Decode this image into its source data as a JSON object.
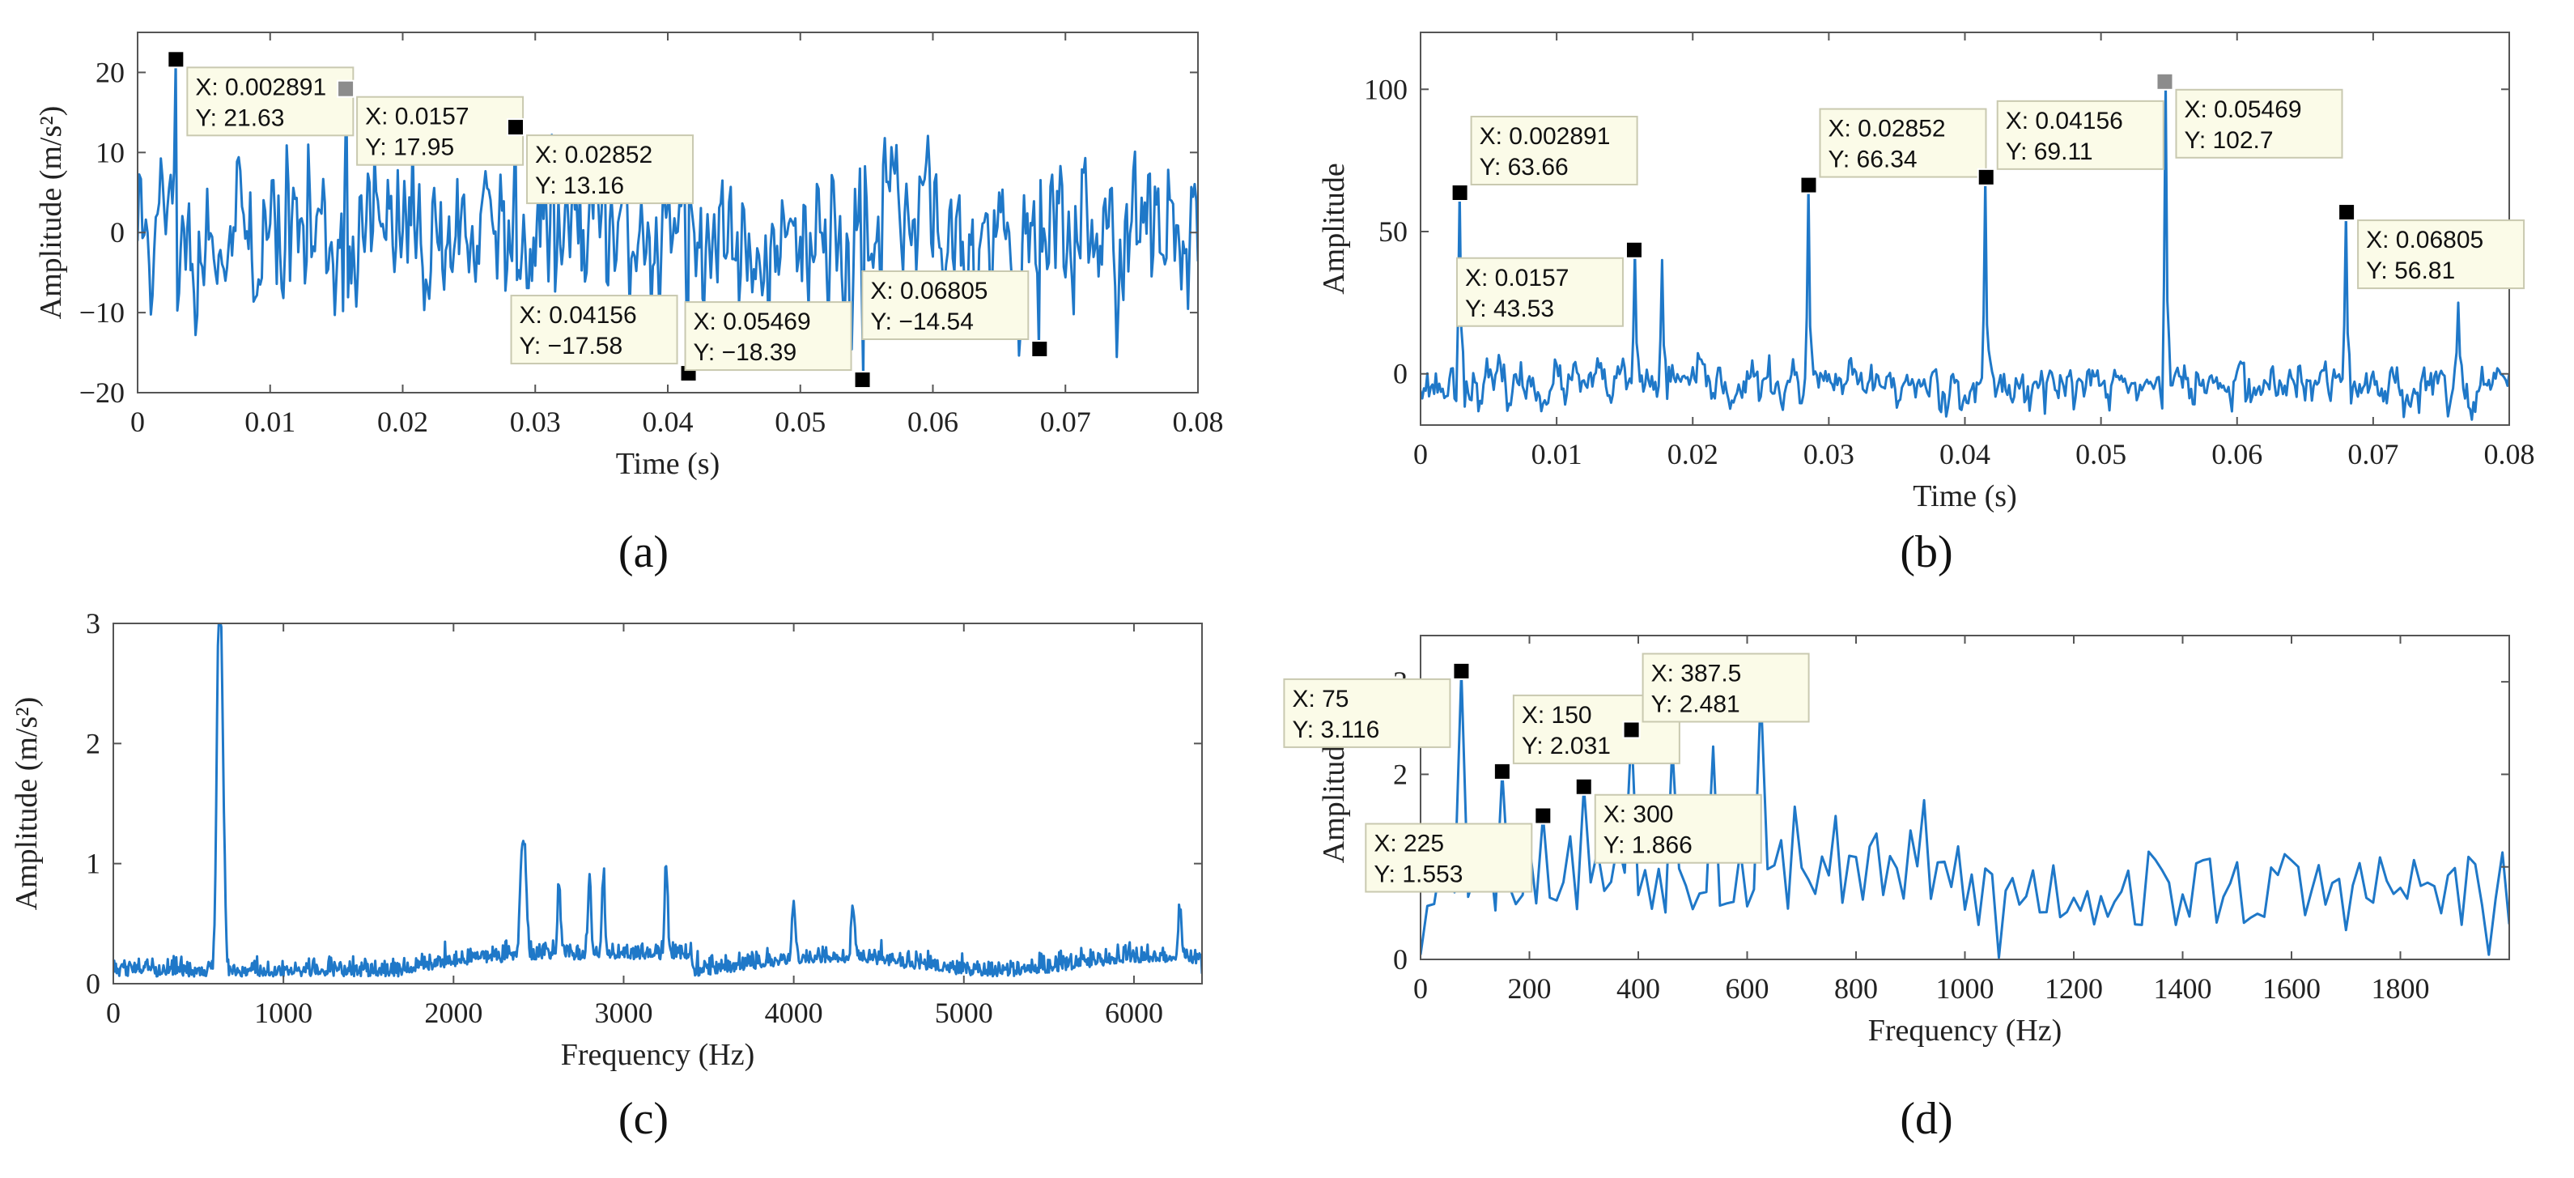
{
  "chart_data": [
    {
      "id": "a",
      "panel_label": "(a)",
      "type": "line",
      "xlabel": "Time (s)",
      "ylabel": "Amplitude (m/s²)",
      "xlim": [
        0,
        0.08
      ],
      "ylim": [
        -20,
        25
      ],
      "xticks": [
        0,
        0.01,
        0.02,
        0.03,
        0.04,
        0.05,
        0.06,
        0.07,
        0.08
      ],
      "xtick_labels": [
        "0",
        "0.01",
        "0.02",
        "0.03",
        "0.04",
        "0.05",
        "0.06",
        "0.07",
        "0.08"
      ],
      "yticks": [
        -20,
        -10,
        0,
        10,
        20
      ],
      "ytick_labels": [
        "−20",
        "−10",
        "0",
        "10",
        "20"
      ],
      "series_color": "#1f78c8",
      "signal": {
        "kind": "time",
        "noise": 4.2,
        "seed": 11
      },
      "datatips": [
        {
          "x": 0.002891,
          "y": 21.63,
          "text_x": "X: 0.002891",
          "text_y": "Y: 21.63",
          "placement": "right-below"
        },
        {
          "x": 0.0157,
          "y": 17.95,
          "text_x": "X: 0.0157",
          "text_y": "Y: 17.95",
          "placement": "right-below",
          "selected": true
        },
        {
          "x": 0.02852,
          "y": 13.16,
          "text_x": "X: 0.02852",
          "text_y": "Y: 13.16",
          "placement": "right-below"
        },
        {
          "x": 0.04156,
          "y": -17.58,
          "text_x": "X: 0.04156",
          "text_y": "Y: −17.58",
          "placement": "left-above"
        },
        {
          "x": 0.05469,
          "y": -18.39,
          "text_x": "X: 0.05469",
          "text_y": "Y: −18.39",
          "placement": "left-above"
        },
        {
          "x": 0.06805,
          "y": -14.54,
          "text_x": "X: 0.06805",
          "text_y": "Y: −14.54",
          "placement": "left-above"
        }
      ]
    },
    {
      "id": "b",
      "panel_label": "(b)",
      "type": "line",
      "xlabel": "Time (s)",
      "ylabel": "Amplitude",
      "xlim": [
        0,
        0.08
      ],
      "ylim": [
        -18,
        120
      ],
      "xticks": [
        0,
        0.01,
        0.02,
        0.03,
        0.04,
        0.05,
        0.06,
        0.07,
        0.08
      ],
      "xtick_labels": [
        "0",
        "0.01",
        "0.02",
        "0.03",
        "0.04",
        "0.05",
        "0.06",
        "0.07",
        "0.08"
      ],
      "yticks": [
        0,
        50,
        100
      ],
      "ytick_labels": [
        "0",
        "50",
        "100"
      ],
      "series_color": "#1f78c8",
      "signal": {
        "kind": "envelope",
        "noise": 5,
        "seed": 23
      },
      "extra_peaks": [
        {
          "x": 0.0178,
          "y": 40
        },
        {
          "x": 0.0762,
          "y": 25
        }
      ],
      "datatips": [
        {
          "x": 0.002891,
          "y": 63.66,
          "text_x": "X: 0.002891",
          "text_y": "Y: 63.66",
          "placement": "right-above"
        },
        {
          "x": 0.0157,
          "y": 43.53,
          "text_x": "X: 0.0157",
          "text_y": "Y: 43.53",
          "placement": "left-below"
        },
        {
          "x": 0.02852,
          "y": 66.34,
          "text_x": "X: 0.02852",
          "text_y": "Y: 66.34",
          "placement": "right-above"
        },
        {
          "x": 0.04156,
          "y": 69.11,
          "text_x": "X: 0.04156",
          "text_y": "Y: 69.11",
          "placement": "right-above"
        },
        {
          "x": 0.05469,
          "y": 102.7,
          "text_x": "X: 0.05469",
          "text_y": "Y: 102.7",
          "placement": "right-below",
          "selected": true
        },
        {
          "x": 0.06805,
          "y": 56.81,
          "text_x": "X: 0.06805",
          "text_y": "Y: 56.81",
          "placement": "right-below"
        }
      ]
    },
    {
      "id": "c",
      "panel_label": "(c)",
      "type": "line",
      "xlabel": "Frequency (Hz)",
      "ylabel": "Amplitude (m/s²)",
      "xlim": [
        0,
        6400
      ],
      "ylim": [
        0,
        3
      ],
      "xticks": [
        0,
        1000,
        2000,
        3000,
        4000,
        5000,
        6000
      ],
      "xtick_labels": [
        "0",
        "1000",
        "2000",
        "3000",
        "4000",
        "5000",
        "6000"
      ],
      "yticks": [
        0,
        1,
        2,
        3
      ],
      "ytick_labels": [
        "0",
        "1",
        "2",
        "3"
      ],
      "series_color": "#1f78c8",
      "signal": {
        "kind": "spectrum",
        "seed": 37
      },
      "peaks": [
        {
          "x": 620,
          "y": 2.72,
          "w": 18
        },
        {
          "x": 640,
          "y": 1.6,
          "w": 18
        },
        {
          "x": 2400,
          "y": 0.77,
          "w": 15
        },
        {
          "x": 2420,
          "y": 0.7,
          "w": 15
        },
        {
          "x": 2620,
          "y": 0.6,
          "w": 12
        },
        {
          "x": 2800,
          "y": 0.7,
          "w": 12
        },
        {
          "x": 2880,
          "y": 0.67,
          "w": 12
        },
        {
          "x": 3250,
          "y": 0.75,
          "w": 12
        },
        {
          "x": 4000,
          "y": 0.45,
          "w": 15
        },
        {
          "x": 4350,
          "y": 0.38,
          "w": 15
        },
        {
          "x": 6270,
          "y": 0.4,
          "w": 15
        }
      ],
      "datatips": []
    },
    {
      "id": "d",
      "panel_label": "(d)",
      "type": "line",
      "xlabel": "Frequency (Hz)",
      "ylabel": "Amplitude",
      "xlim": [
        0,
        2000
      ],
      "ylim": [
        0,
        3.5
      ],
      "xticks": [
        0,
        200,
        400,
        600,
        800,
        1000,
        1200,
        1400,
        1600,
        1800
      ],
      "xtick_labels": [
        "0",
        "200",
        "400",
        "600",
        "800",
        "1000",
        "1200",
        "1400",
        "1600",
        "1800"
      ],
      "yticks": [
        0,
        1,
        2,
        3
      ],
      "ytick_labels": [
        "0",
        "1",
        "2",
        "3"
      ],
      "series_color": "#1f78c8",
      "signal": {
        "kind": "coarse-spectrum",
        "step": 12.5,
        "seed": 53
      },
      "peaks": [
        {
          "x": 75,
          "y": 3.116
        },
        {
          "x": 150,
          "y": 2.031
        },
        {
          "x": 225,
          "y": 1.553
        },
        {
          "x": 300,
          "y": 1.866
        },
        {
          "x": 387.5,
          "y": 2.481
        },
        {
          "x": 462.5,
          "y": 2.3
        },
        {
          "x": 537.5,
          "y": 2.3
        },
        {
          "x": 625,
          "y": 2.9
        },
        {
          "x": 687.5,
          "y": 1.65
        },
        {
          "x": 762.5,
          "y": 1.55
        },
        {
          "x": 925,
          "y": 1.72
        },
        {
          "x": 1062.5,
          "y": 0.02
        },
        {
          "x": 1962.5,
          "y": 0.05
        }
      ],
      "datatips": [
        {
          "x": 75,
          "y": 3.116,
          "text_x": "X: 75",
          "text_y": "Y: 3.116",
          "placement": "left-below"
        },
        {
          "x": 150,
          "y": 2.031,
          "text_x": "X: 150",
          "text_y": "Y: 2.031",
          "placement": "right-above",
          "selected_marker_x": 387.5,
          "selected_marker_y": 2.481
        },
        {
          "x": 225,
          "y": 1.553,
          "text_x": "X: 225",
          "text_y": "Y: 1.553",
          "placement": "left-below"
        },
        {
          "x": 300,
          "y": 1.866,
          "text_x": "X: 300",
          "text_y": "Y: 1.866",
          "placement": "right-below"
        },
        {
          "x": 387.5,
          "y": 2.481,
          "text_x": "X: 387.5",
          "text_y": "Y: 2.481",
          "placement": "right-above"
        }
      ]
    }
  ]
}
